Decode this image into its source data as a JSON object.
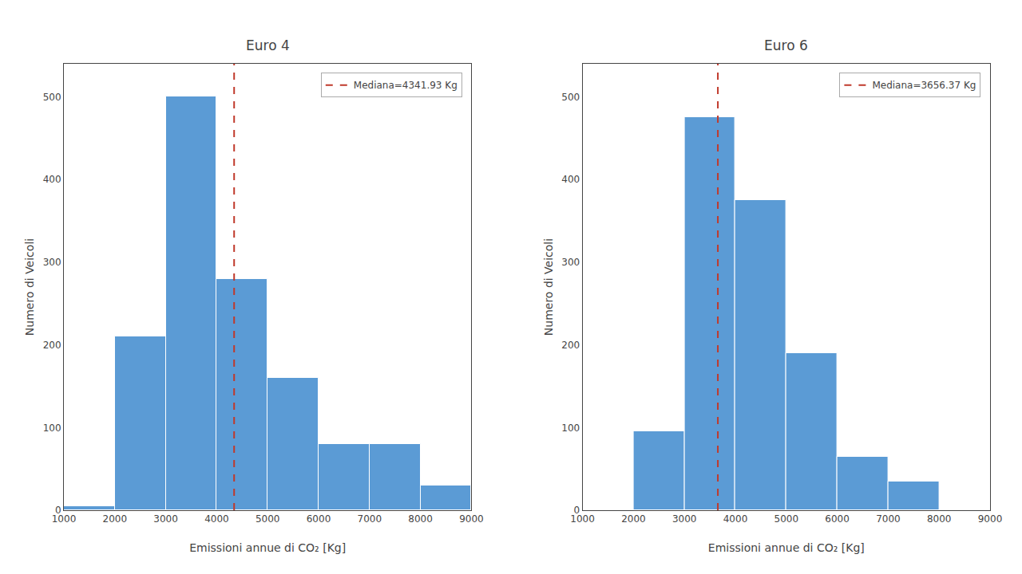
{
  "chart_data": [
    {
      "type": "histogram",
      "title": "Euro 4",
      "bins": [
        1000,
        2000,
        3000,
        4000,
        5000,
        6000,
        7000,
        8000,
        9000
      ],
      "values": [
        5,
        210,
        500,
        280,
        160,
        80,
        80,
        30
      ],
      "color": "#5b9bd5",
      "series": [
        {
          "name": "Mediana=4341.93 Kg",
          "type": "vline",
          "x": 4341.93,
          "color": "#c0392b",
          "line_style": "dashed"
        }
      ],
      "xlabel": "Emissioni annue di CO₂ [Kg]",
      "ylabel": "Numero di Veicoli",
      "xlim": [
        1000,
        9000
      ],
      "ylim": [
        0,
        540
      ],
      "xticks": [
        1000,
        2000,
        3000,
        4000,
        5000,
        6000,
        7000,
        8000,
        9000
      ],
      "yticks": [
        0,
        100,
        200,
        300,
        400,
        500
      ],
      "grid": false,
      "legend": "upper right"
    },
    {
      "type": "histogram",
      "title": "Euro 6",
      "bins": [
        1000,
        2000,
        3000,
        4000,
        5000,
        6000,
        7000,
        8000,
        9000
      ],
      "values": [
        0,
        95,
        475,
        375,
        190,
        65,
        35,
        0
      ],
      "color": "#5b9bd5",
      "series": [
        {
          "name": "Mediana=3656.37 Kg",
          "type": "vline",
          "x": 3656.37,
          "color": "#c0392b",
          "line_style": "dashed"
        }
      ],
      "xlabel": "Emissioni annue di CO₂ [Kg]",
      "ylabel": "Numero di Veicoli",
      "xlim": [
        1000,
        9000
      ],
      "ylim": [
        0,
        540
      ],
      "xticks": [
        1000,
        2000,
        3000,
        4000,
        5000,
        6000,
        7000,
        8000,
        9000
      ],
      "yticks": [
        0,
        100,
        200,
        300,
        400,
        500
      ],
      "grid": false,
      "legend": "upper right"
    }
  ]
}
